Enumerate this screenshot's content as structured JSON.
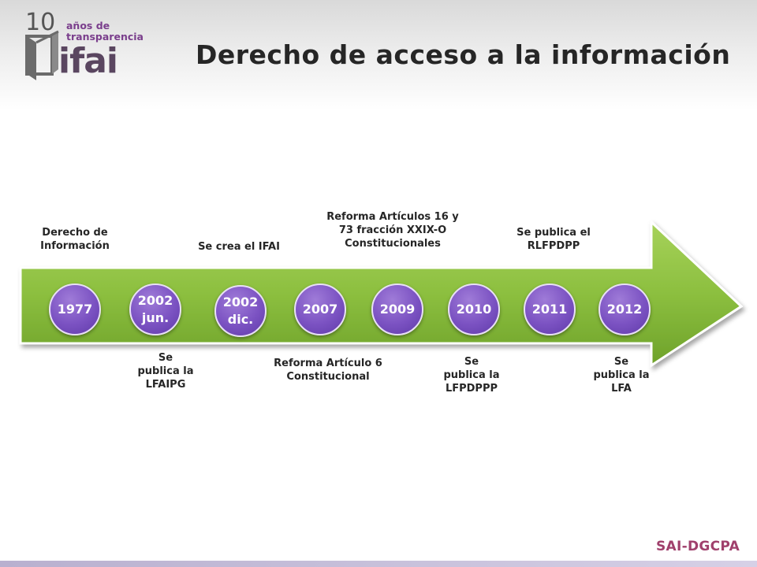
{
  "logo": {
    "number": "10",
    "line1": "años de",
    "line2": "transparencia",
    "brand": "ifai"
  },
  "title": "Derecho de acceso a la información",
  "timeline": {
    "nodes": [
      {
        "line1": "1977",
        "line2": ""
      },
      {
        "line1": "2002",
        "line2": "jun."
      },
      {
        "line1": "2002",
        "line2": "dic."
      },
      {
        "line1": "2007",
        "line2": ""
      },
      {
        "line1": "2009",
        "line2": ""
      },
      {
        "line1": "2010",
        "line2": ""
      },
      {
        "line1": "2011",
        "line2": ""
      },
      {
        "line1": "2012",
        "line2": ""
      }
    ],
    "labels_above": [
      {
        "lines": [
          "Derecho de",
          "Información"
        ]
      },
      {
        "lines": [
          "Se crea el IFAI"
        ]
      },
      {
        "lines": [
          "Reforma Artículos 16 y",
          "73 fracción XXIX-O",
          "Constitucionales"
        ]
      },
      {
        "lines": [
          "Se publica el",
          "RLFPDPP"
        ]
      }
    ],
    "labels_below": [
      {
        "lines": [
          "Se",
          "publica la",
          "LFAIPG"
        ]
      },
      {
        "lines": [
          "Reforma Artículo 6",
          "Constitucional"
        ]
      },
      {
        "lines": [
          "Se",
          "publica la",
          "LFPDPPP"
        ]
      },
      {
        "lines": [
          "Se",
          "publica la",
          "LFA"
        ]
      }
    ]
  },
  "footer": {
    "badge": "SAI-DGCPA"
  },
  "colors": {
    "arrow": "#8cbf3f",
    "arrow_border": "#6e9d2a",
    "node": "#7b52c2",
    "badge": "#a0406c"
  }
}
